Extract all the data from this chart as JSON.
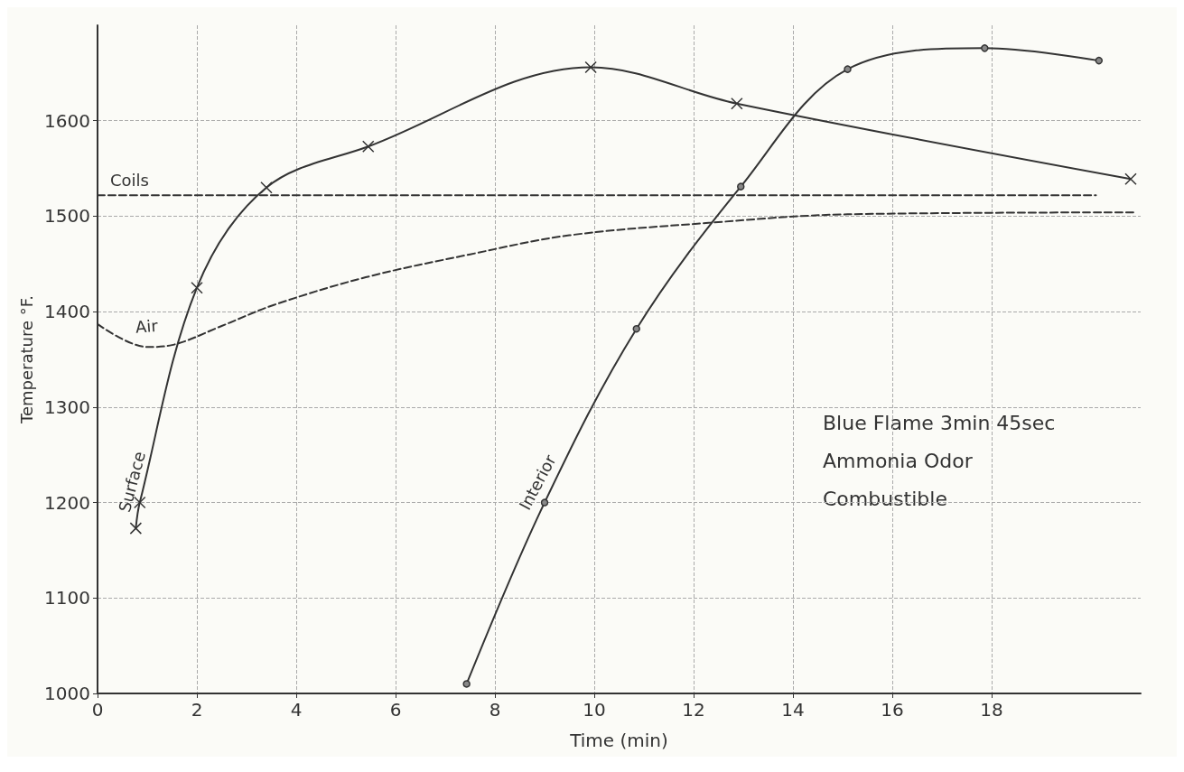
{
  "chart_data": {
    "type": "line",
    "xlabel": "Time (min)",
    "ylabel": "Temperature °F.",
    "xlim": [
      0,
      21
    ],
    "ylim": [
      1000,
      1700
    ],
    "xticks": [
      0,
      2,
      4,
      6,
      8,
      10,
      12,
      14,
      16,
      18
    ],
    "yticks": [
      1000,
      1100,
      1200,
      1300,
      1400,
      1500,
      1600
    ],
    "grid": true,
    "legend": false,
    "series": [
      {
        "name": "Coils",
        "color": "#333333",
        "line_style": "dashed",
        "marker": "none",
        "x": [
          0,
          20.1
        ],
        "values": [
          1522,
          1522
        ]
      },
      {
        "name": "Air",
        "color": "#333333",
        "line_style": "dashed",
        "marker": "none",
        "x": [
          0,
          1,
          1.5,
          2.5,
          3.55,
          5.4,
          7.5,
          9.5,
          12.3,
          15.1,
          20.9
        ],
        "values": [
          1387,
          1363,
          1365,
          1385,
          1407,
          1436,
          1460,
          1480,
          1493,
          1502,
          1504
        ]
      },
      {
        "name": "Surface",
        "color": "#333333",
        "line_style": "solid",
        "marker": "cross",
        "x": [
          0.77,
          0.85,
          2,
          3.4,
          5.45,
          9.93,
          12.87,
          20.8
        ],
        "values": [
          1173,
          1200,
          1425,
          1530,
          1573,
          1656,
          1618,
          1539
        ]
      },
      {
        "name": "Interior",
        "color": "#333333",
        "line_style": "solid",
        "marker": "circle",
        "x": [
          7.43,
          9,
          10.85,
          12.95,
          15.1,
          17.86,
          20.16
        ],
        "values": [
          1010,
          1200,
          1382,
          1531,
          1654,
          1676,
          1663
        ]
      }
    ],
    "annotations": [
      "Blue Flame 3min 45sec",
      "Ammonia Odor",
      "Combustible"
    ]
  }
}
